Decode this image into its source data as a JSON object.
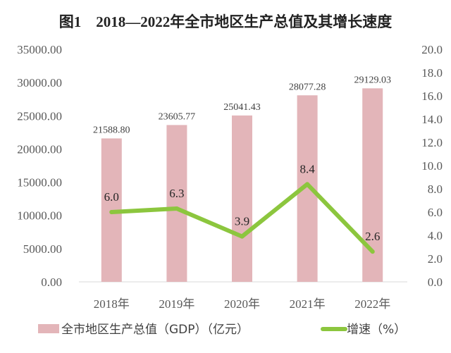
{
  "chart_data": {
    "type": "bar+line",
    "title": "图1　2018—2022年全市地区生产总值及其增长速度",
    "categories": [
      "2018年",
      "2019年",
      "2020年",
      "2021年",
      "2022年"
    ],
    "series": [
      {
        "name": "全市地区生产总值（GDP）（亿元）",
        "type": "bar",
        "axis": "left",
        "color": "#e3b5b9",
        "values": [
          21588.8,
          23605.77,
          25041.43,
          28077.28,
          29129.03
        ],
        "labels": [
          "21588.80",
          "23605.77",
          "25041.43",
          "28077.28",
          "29129.03"
        ]
      },
      {
        "name": "增速（%）",
        "type": "line",
        "axis": "right",
        "color": "#8cc63e",
        "values": [
          6.0,
          6.3,
          3.9,
          8.4,
          2.6
        ],
        "labels": [
          "6.0",
          "6.3",
          "3.9",
          "8.4",
          "2.6"
        ]
      }
    ],
    "left_axis": {
      "ylim": [
        0,
        35000
      ],
      "ticks": [
        "0.00",
        "5000.00",
        "10000.00",
        "15000.00",
        "20000.00",
        "25000.00",
        "30000.00",
        "35000.00"
      ]
    },
    "right_axis": {
      "ylim": [
        0,
        20
      ],
      "ticks": [
        "0.0",
        "2.0",
        "4.0",
        "6.0",
        "8.0",
        "10.0",
        "12.0",
        "14.0",
        "16.0",
        "18.0",
        "20.0"
      ]
    },
    "grid": false,
    "legend": "bottom"
  }
}
